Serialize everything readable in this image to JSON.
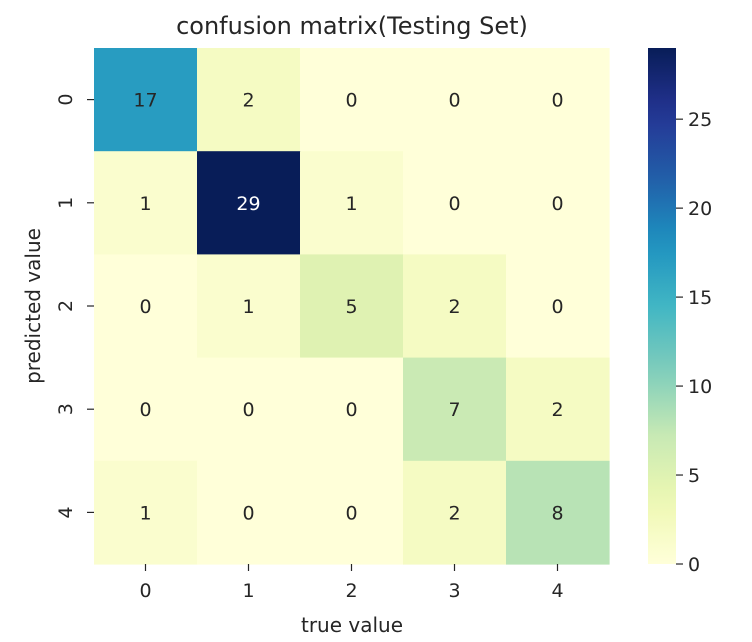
{
  "chart_data": {
    "type": "heatmap",
    "title": "confusion matrix(Testing Set)",
    "xlabel": "true value",
    "ylabel": "predicted value",
    "x_categories": [
      "0",
      "1",
      "2",
      "3",
      "4"
    ],
    "y_categories": [
      "0",
      "1",
      "2",
      "3",
      "4"
    ],
    "values": [
      [
        17,
        2,
        0,
        0,
        0
      ],
      [
        1,
        29,
        1,
        0,
        0
      ],
      [
        0,
        1,
        5,
        2,
        0
      ],
      [
        0,
        0,
        0,
        7,
        2
      ],
      [
        1,
        0,
        0,
        2,
        8
      ]
    ],
    "colormap": "YlGnBu",
    "vmin": 0,
    "vmax": 29,
    "colorbar_ticks": [
      0,
      5,
      10,
      15,
      20,
      25
    ],
    "colorbar_tick_labels": [
      "0",
      "5",
      "10",
      "15",
      "20",
      "25"
    ]
  }
}
